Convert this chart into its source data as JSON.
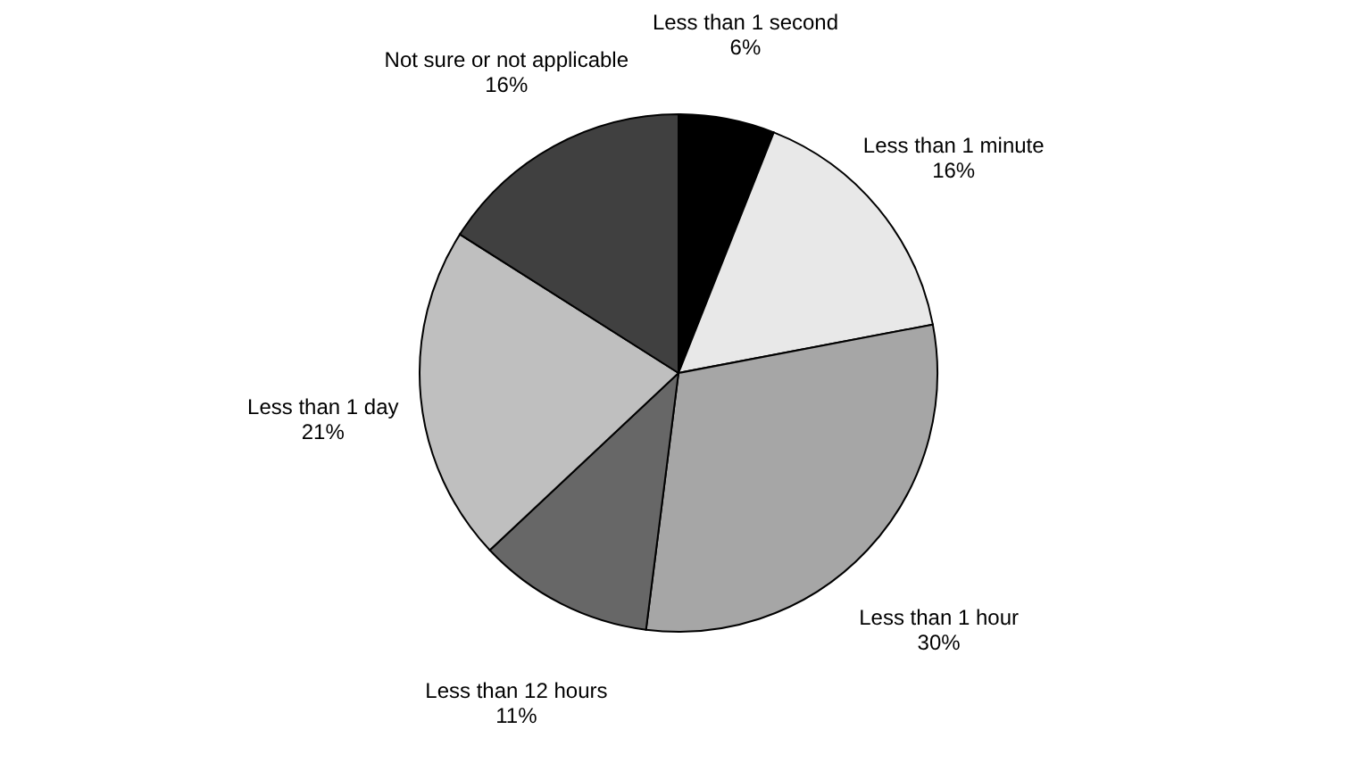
{
  "chart_data": {
    "type": "pie",
    "categories": [
      "Less than 1 second",
      "Less than 1 minute",
      "Less than 1 hour",
      "Less than 12 hours",
      "Less than 1 day",
      "Not sure or not applicable"
    ],
    "values": [
      6,
      16,
      30,
      11,
      21,
      16
    ],
    "value_labels": [
      "6%",
      "16%",
      "30%",
      "11%",
      "21%",
      "16%"
    ],
    "colors": [
      "#000000",
      "#e8e8e8",
      "#a6a6a6",
      "#676767",
      "#bfbfbf",
      "#404040"
    ],
    "legend": false
  }
}
